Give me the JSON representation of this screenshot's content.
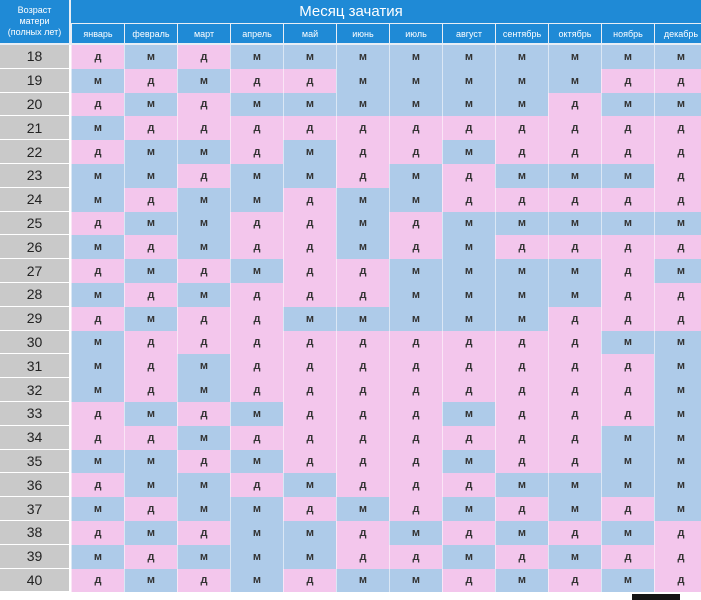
{
  "header": {
    "age_column_label": "Возраст\nматери\n(полных лет)",
    "month_title": "Месяц зачатия"
  },
  "months": [
    "январь",
    "февраль",
    "март",
    "апрель",
    "май",
    "июнь",
    "июль",
    "август",
    "сентябрь",
    "октябрь",
    "ноябрь",
    "декабрь"
  ],
  "legend_colors": {
    "м": "#aecbe9",
    "д": "#f3c6ec",
    "header": "#1f8ad6",
    "age_bg": "#c9c9c9"
  },
  "rows": [
    {
      "age": "18",
      "cells": [
        "д",
        "м",
        "д",
        "м",
        "м",
        "м",
        "м",
        "м",
        "м",
        "м",
        "м",
        "м"
      ]
    },
    {
      "age": "19",
      "cells": [
        "м",
        "д",
        "м",
        "д",
        "д",
        "м",
        "м",
        "м",
        "м",
        "м",
        "д",
        "д"
      ]
    },
    {
      "age": "20",
      "cells": [
        "д",
        "м",
        "д",
        "м",
        "м",
        "м",
        "м",
        "м",
        "м",
        "д",
        "м",
        "м"
      ]
    },
    {
      "age": "21",
      "cells": [
        "м",
        "д",
        "д",
        "д",
        "д",
        "д",
        "д",
        "д",
        "д",
        "д",
        "д",
        "д"
      ]
    },
    {
      "age": "22",
      "cells": [
        "д",
        "м",
        "м",
        "д",
        "м",
        "д",
        "д",
        "м",
        "д",
        "д",
        "д",
        "д"
      ]
    },
    {
      "age": "23",
      "cells": [
        "м",
        "м",
        "д",
        "м",
        "м",
        "д",
        "м",
        "д",
        "м",
        "м",
        "м",
        "д"
      ]
    },
    {
      "age": "24",
      "cells": [
        "м",
        "д",
        "м",
        "м",
        "д",
        "м",
        "м",
        "д",
        "д",
        "д",
        "д",
        "д"
      ]
    },
    {
      "age": "25",
      "cells": [
        "д",
        "м",
        "м",
        "д",
        "д",
        "м",
        "д",
        "м",
        "м",
        "м",
        "м",
        "м"
      ]
    },
    {
      "age": "26",
      "cells": [
        "м",
        "д",
        "м",
        "д",
        "д",
        "м",
        "д",
        "м",
        "д",
        "д",
        "д",
        "д"
      ]
    },
    {
      "age": "27",
      "cells": [
        "д",
        "м",
        "д",
        "м",
        "д",
        "д",
        "м",
        "м",
        "м",
        "м",
        "д",
        "м"
      ]
    },
    {
      "age": "28",
      "cells": [
        "м",
        "д",
        "м",
        "д",
        "д",
        "д",
        "м",
        "м",
        "м",
        "м",
        "д",
        "д"
      ]
    },
    {
      "age": "29",
      "cells": [
        "д",
        "м",
        "д",
        "д",
        "м",
        "м",
        "м",
        "м",
        "м",
        "д",
        "д",
        "д"
      ]
    },
    {
      "age": "30",
      "cells": [
        "м",
        "д",
        "д",
        "д",
        "д",
        "д",
        "д",
        "д",
        "д",
        "д",
        "м",
        "м"
      ]
    },
    {
      "age": "31",
      "cells": [
        "м",
        "д",
        "м",
        "д",
        "д",
        "д",
        "д",
        "д",
        "д",
        "д",
        "д",
        "м"
      ]
    },
    {
      "age": "32",
      "cells": [
        "м",
        "д",
        "м",
        "д",
        "д",
        "д",
        "д",
        "д",
        "д",
        "д",
        "д",
        "м"
      ]
    },
    {
      "age": "33",
      "cells": [
        "д",
        "м",
        "д",
        "м",
        "д",
        "д",
        "д",
        "м",
        "д",
        "д",
        "д",
        "м"
      ]
    },
    {
      "age": "34",
      "cells": [
        "д",
        "д",
        "м",
        "д",
        "д",
        "д",
        "д",
        "д",
        "д",
        "д",
        "м",
        "м"
      ]
    },
    {
      "age": "35",
      "cells": [
        "м",
        "м",
        "д",
        "м",
        "д",
        "д",
        "д",
        "м",
        "д",
        "д",
        "м",
        "м"
      ]
    },
    {
      "age": "36",
      "cells": [
        "д",
        "м",
        "м",
        "д",
        "м",
        "д",
        "д",
        "д",
        "м",
        "м",
        "м",
        "м"
      ]
    },
    {
      "age": "37",
      "cells": [
        "м",
        "д",
        "м",
        "м",
        "д",
        "м",
        "д",
        "м",
        "д",
        "м",
        "д",
        "м"
      ]
    },
    {
      "age": "38",
      "cells": [
        "д",
        "м",
        "д",
        "м",
        "м",
        "д",
        "м",
        "д",
        "м",
        "д",
        "м",
        "д"
      ]
    },
    {
      "age": "39",
      "cells": [
        "м",
        "д",
        "м",
        "м",
        "м",
        "д",
        "д",
        "м",
        "д",
        "м",
        "д",
        "д"
      ]
    },
    {
      "age": "40",
      "cells": [
        "д",
        "м",
        "д",
        "м",
        "д",
        "м",
        "м",
        "д",
        "м",
        "д",
        "м",
        "д"
      ]
    }
  ]
}
